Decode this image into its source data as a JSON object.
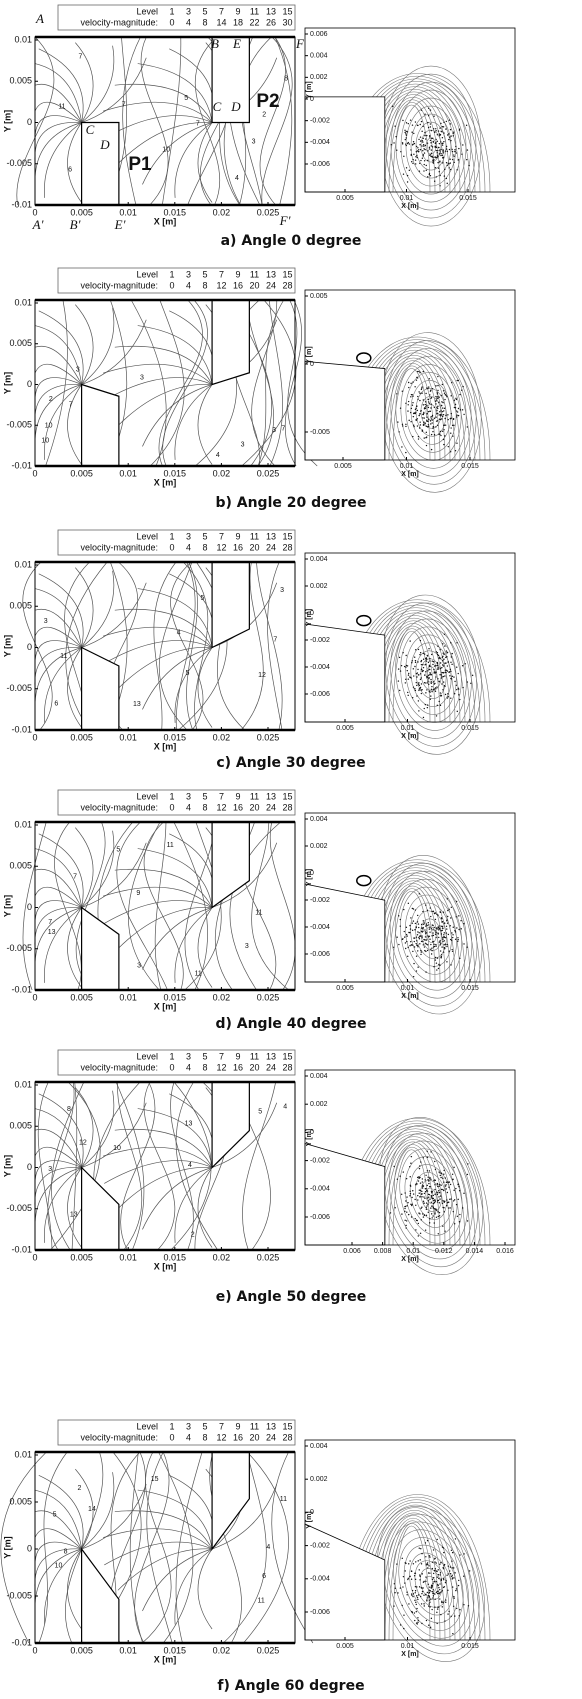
{
  "panels": [
    {
      "caption": "a) Angle 0 degree",
      "legend": {
        "level_label": "Level",
        "levels": [
          1,
          3,
          5,
          7,
          9,
          11,
          13,
          15
        ],
        "magnitude_label": "velocity-magnitude:",
        "magnitudes": [
          0,
          4,
          8,
          14,
          18,
          22,
          26,
          30
        ]
      },
      "contour": {
        "x_label": "X [m]",
        "y_label": "Y [m]",
        "xticks": [
          0,
          0.005,
          0.01,
          0.015,
          0.02,
          0.025
        ],
        "yticks": [
          -0.01,
          -0.005,
          0,
          0.005,
          0.01
        ],
        "contour_labels": [
          "2",
          "3",
          "7",
          "10",
          "9",
          "5",
          "7",
          "4",
          "6",
          "11",
          "7",
          "8"
        ],
        "point_labels": [
          "A",
          "B",
          "E",
          "F",
          "C",
          "D",
          "P2",
          "C",
          "D",
          "P1",
          "A'",
          "B'",
          "E'",
          "F'"
        ]
      },
      "streamline": {
        "x_label": "X [m]",
        "y_label": "Y [m]",
        "xticks": [
          0.005,
          0.01,
          0.015
        ],
        "yticks": [
          0.006,
          0.004,
          0.002,
          0,
          -0.002,
          -0.004,
          -0.006
        ]
      }
    },
    {
      "caption": "b) Angle 20 degree",
      "legend": {
        "level_label": "Level",
        "levels": [
          1,
          3,
          5,
          7,
          9,
          11,
          13,
          15
        ],
        "magnitude_label": "velocity-magnitude:",
        "magnitudes": [
          0,
          4,
          8,
          12,
          16,
          20,
          24,
          28
        ]
      },
      "contour": {
        "x_label": "X [m]",
        "y_label": "Y [m]",
        "xticks": [
          0,
          0.005,
          0.01,
          0.015,
          0.02,
          0.025
        ],
        "yticks": [
          -0.01,
          -0.005,
          0,
          0.005,
          0.01
        ],
        "contour_labels": [
          "2",
          "3",
          "10",
          "3",
          "4",
          "7",
          "7",
          "3",
          "10",
          "3"
        ]
      },
      "streamline": {
        "x_label": "X [m]",
        "y_label": "Y [m]",
        "xticks": [
          0.005,
          0.01,
          0.015
        ],
        "yticks": [
          0.005,
          0,
          -0.005
        ]
      }
    },
    {
      "caption": "c) Angle 30 degree",
      "legend": {
        "level_label": "Level",
        "levels": [
          1,
          3,
          5,
          7,
          9,
          11,
          13,
          15
        ],
        "magnitude_label": "velocity-magnitude:",
        "magnitudes": [
          0,
          4,
          8,
          12,
          16,
          20,
          24,
          28
        ]
      },
      "contour": {
        "x_label": "X [m]",
        "y_label": "Y [m]",
        "xticks": [
          0,
          0.005,
          0.01,
          0.015,
          0.02,
          0.025
        ],
        "yticks": [
          -0.01,
          -0.005,
          0,
          0.005,
          0.01
        ],
        "contour_labels": [
          "4",
          "3",
          "11",
          "12",
          "7",
          "5",
          "6",
          "13",
          "5",
          "3"
        ]
      },
      "streamline": {
        "x_label": "X [m]",
        "y_label": "Y [m]",
        "xticks": [
          0.005,
          0.01,
          0.015
        ],
        "yticks": [
          0.004,
          0.002,
          0,
          -0.002,
          -0.004,
          -0.006
        ]
      }
    },
    {
      "caption": "d) Angle 40 degree",
      "legend": {
        "level_label": "Level",
        "levels": [
          1,
          3,
          5,
          7,
          9,
          11,
          13,
          15
        ],
        "magnitude_label": "velocity-magnitude:",
        "magnitudes": [
          0,
          4,
          8,
          12,
          16,
          20,
          24,
          28
        ]
      },
      "contour": {
        "x_label": "X [m]",
        "y_label": "Y [m]",
        "xticks": [
          0,
          0.005,
          0.01,
          0.015,
          0.02,
          0.025
        ],
        "yticks": [
          -0.01,
          -0.005,
          0,
          0.005,
          0.01
        ],
        "contour_labels": [
          "7",
          "11",
          "13",
          "11",
          "3",
          "5",
          "11",
          "9",
          "3",
          "7"
        ]
      },
      "streamline": {
        "x_label": "X [m]",
        "y_label": "Y [m]",
        "xticks": [
          0.005,
          0.01,
          0.015
        ],
        "yticks": [
          0.004,
          0.002,
          0,
          -0.002,
          -0.004,
          -0.006
        ]
      }
    },
    {
      "caption": "e) Angle 50 degree",
      "legend": {
        "level_label": "Level",
        "levels": [
          1,
          3,
          5,
          7,
          9,
          11,
          13,
          15
        ],
        "magnitude_label": "velocity-magnitude:",
        "magnitudes": [
          0,
          4,
          8,
          12,
          16,
          20,
          24,
          28
        ]
      },
      "contour": {
        "x_label": "X [m]",
        "y_label": "Y [m]",
        "xticks": [
          0,
          0.005,
          0.01,
          0.015,
          0.02,
          0.025
        ],
        "yticks": [
          -0.01,
          -0.005,
          0,
          0.005,
          0.01
        ],
        "contour_labels": [
          "4",
          "10",
          "12",
          "13",
          "3",
          "2",
          "5",
          "13",
          "8",
          "4"
        ]
      },
      "streamline": {
        "x_label": "X [m]",
        "y_label": "Y [m]",
        "xticks": [
          0.006,
          0.008,
          0.01,
          0.012,
          0.014,
          0.016
        ],
        "yticks": [
          0.004,
          0.002,
          0,
          -0.002,
          -0.004,
          -0.006
        ]
      }
    },
    {
      "caption": "f) Angle 60 degree",
      "legend": {
        "level_label": "Level",
        "levels": [
          1,
          3,
          5,
          7,
          9,
          11,
          13,
          15
        ],
        "magnitude_label": "velocity-magnitude:",
        "magnitudes": [
          0,
          4,
          8,
          12,
          16,
          20,
          24,
          28
        ]
      },
      "contour": {
        "x_label": "X [m]",
        "y_label": "Y [m]",
        "xticks": [
          0,
          0.005,
          0.01,
          0.015,
          0.02,
          0.025
        ],
        "yticks": [
          -0.01,
          -0.005,
          0,
          0.005,
          0.01
        ],
        "contour_labels": [
          "5",
          "11",
          "10",
          "15",
          "14",
          "2",
          "6",
          "4",
          "11",
          "8"
        ]
      },
      "streamline": {
        "x_label": "X [m]",
        "y_label": "Y [m]",
        "xticks": [
          0.005,
          0.01,
          0.015
        ],
        "yticks": [
          0.004,
          0.002,
          0,
          -0.002,
          -0.004,
          -0.006
        ]
      }
    }
  ]
}
